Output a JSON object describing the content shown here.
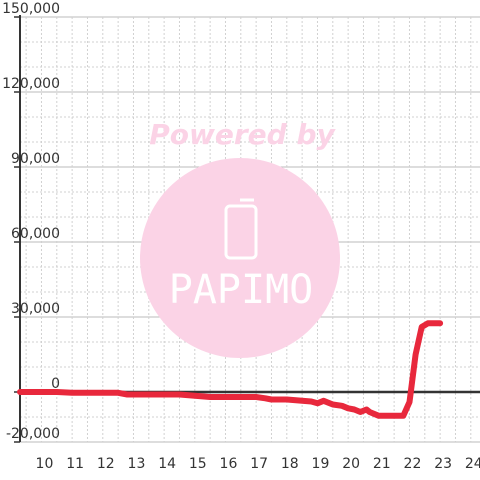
{
  "chart_data": {
    "type": "line",
    "title": "",
    "xlabel": "",
    "ylabel": "",
    "xlim": [
      9.3,
      24.3
    ],
    "ylim": [
      -20000,
      150000
    ],
    "x_ticks": [
      10,
      11,
      12,
      13,
      14,
      15,
      16,
      17,
      18,
      19,
      20,
      21,
      22,
      23,
      24
    ],
    "y_ticks": [
      {
        "value": 150000,
        "label": "150,000"
      },
      {
        "value": 120000,
        "label": "120,000"
      },
      {
        "value": 90000,
        "label": "90,000"
      },
      {
        "value": 60000,
        "label": "60,000"
      },
      {
        "value": 30000,
        "label": "30,000"
      },
      {
        "value": 0,
        "label": "0"
      },
      {
        "value": -20000,
        "label": "-20,000"
      }
    ],
    "grid": true,
    "series": [
      {
        "color": "#e8283c",
        "x": [
          9.3,
          10.0,
          10.5,
          11.0,
          11.5,
          12.0,
          12.5,
          12.8,
          13.5,
          14.0,
          14.5,
          15.0,
          15.5,
          16.0,
          16.5,
          17.0,
          17.3,
          17.5,
          18.0,
          18.5,
          18.8,
          19.0,
          19.2,
          19.5,
          19.8,
          20.0,
          20.2,
          20.4,
          20.6,
          20.7,
          21.0,
          21.5,
          21.8,
          22.0,
          22.2,
          22.4,
          22.6,
          22.8,
          23.0
        ],
        "y": [
          0,
          0,
          0,
          -300,
          -300,
          -300,
          -300,
          -1000,
          -1000,
          -1000,
          -1000,
          -1500,
          -2000,
          -2000,
          -2000,
          -2000,
          -2500,
          -3000,
          -3000,
          -3500,
          -3800,
          -4500,
          -3500,
          -5000,
          -5500,
          -6500,
          -7000,
          -8000,
          -7000,
          -8000,
          -9500,
          -9500,
          -9500,
          -4000,
          15000,
          26000,
          27500,
          27500,
          27500
        ]
      }
    ]
  },
  "watermark": {
    "line1": "Powered by",
    "brand": "PAPIMO"
  }
}
